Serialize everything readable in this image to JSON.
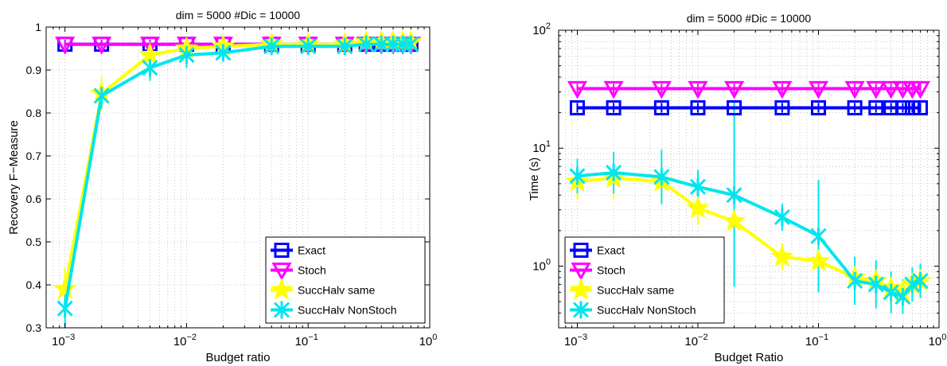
{
  "chart_data": [
    {
      "type": "line",
      "title": "dim = 5000  #Dic = 10000",
      "xlabel": "Budget ratio",
      "ylabel": "Recovery F−Measure",
      "xscale": "log",
      "yscale": "linear",
      "xlim": [
        0.0007,
        1
      ],
      "ylim": [
        0.3,
        1
      ],
      "xticks": [
        {
          "value": 0.001,
          "mant": "10",
          "exp": "−3"
        },
        {
          "value": 0.01,
          "mant": "10",
          "exp": "−2"
        },
        {
          "value": 0.1,
          "mant": "10",
          "exp": "−1"
        },
        {
          "value": 1,
          "mant": "10",
          "exp": "0"
        }
      ],
      "yticks": [
        {
          "value": 0.3,
          "label": "0.3"
        },
        {
          "value": 0.4,
          "label": "0.4"
        },
        {
          "value": 0.5,
          "label": "0.5"
        },
        {
          "value": 0.6,
          "label": "0.6"
        },
        {
          "value": 0.7,
          "label": "0.7"
        },
        {
          "value": 0.8,
          "label": "0.8"
        },
        {
          "value": 0.9,
          "label": "0.9"
        },
        {
          "value": 1,
          "label": "1"
        }
      ],
      "grid": true,
      "legend_position": "bottom-right",
      "x": [
        0.001,
        0.002,
        0.005,
        0.01,
        0.02,
        0.05,
        0.1,
        0.2,
        0.3,
        0.4,
        0.5,
        0.6,
        0.7
      ],
      "series": [
        {
          "name": "Exact",
          "color": "#0000ff",
          "marker": "square",
          "values": [
            0.96,
            0.96,
            0.96,
            0.96,
            0.96,
            0.96,
            0.96,
            0.96,
            0.96,
            0.96,
            0.96,
            0.96,
            0.96
          ],
          "err": [
            0.01,
            0.01,
            0.01,
            0.01,
            0.01,
            0.01,
            0.01,
            0.01,
            0.01,
            0.01,
            0.01,
            0.01,
            0.01
          ]
        },
        {
          "name": "Stoch",
          "color": "#ff00ff",
          "marker": "triangle-down",
          "values": [
            0.96,
            0.96,
            0.96,
            0.96,
            0.96,
            0.96,
            0.96,
            0.96,
            0.96,
            0.96,
            0.96,
            0.96,
            0.96
          ],
          "err": [
            0.01,
            0.01,
            0.01,
            0.01,
            0.01,
            0.01,
            0.01,
            0.01,
            0.01,
            0.01,
            0.01,
            0.01,
            0.01
          ]
        },
        {
          "name": "SuccHalv same",
          "color": "#ffff00",
          "marker": "star",
          "values": [
            0.39,
            0.845,
            0.935,
            0.95,
            0.955,
            0.96,
            0.96,
            0.96,
            0.965,
            0.965,
            0.965,
            0.965,
            0.965
          ],
          "err": [
            0.05,
            0.04,
            0.03,
            0.02,
            0.01,
            0.01,
            0.01,
            0.01,
            0.01,
            0.01,
            0.01,
            0.01,
            0.01
          ]
        },
        {
          "name": "SuccHalv NonStoch",
          "color": "#00e5ee",
          "marker": "x-star",
          "values": [
            0.345,
            0.84,
            0.905,
            0.935,
            0.94,
            0.955,
            0.955,
            0.955,
            0.96,
            0.96,
            0.96,
            0.96,
            0.96
          ],
          "err": [
            0.05,
            0.03,
            0.03,
            0.03,
            0.02,
            0.01,
            0.01,
            0.01,
            0.01,
            0.01,
            0.01,
            0.01,
            0.01
          ]
        }
      ]
    },
    {
      "type": "line",
      "title": "dim = 5000  #Dic = 10000",
      "xlabel": "Budget Ratio",
      "ylabel": "Time (s)",
      "xscale": "log",
      "yscale": "log",
      "xlim": [
        0.0007,
        1
      ],
      "ylim": [
        0.3,
        100
      ],
      "xticks": [
        {
          "value": 0.001,
          "mant": "10",
          "exp": "−3"
        },
        {
          "value": 0.01,
          "mant": "10",
          "exp": "−2"
        },
        {
          "value": 0.1,
          "mant": "10",
          "exp": "−1"
        },
        {
          "value": 1,
          "mant": "10",
          "exp": "0"
        }
      ],
      "yticks": [
        {
          "value": 1,
          "mant": "10",
          "exp": "0"
        },
        {
          "value": 10,
          "mant": "10",
          "exp": "1"
        },
        {
          "value": 100,
          "mant": "10",
          "exp": "2"
        }
      ],
      "grid": true,
      "legend_position": "bottom-left",
      "x": [
        0.001,
        0.002,
        0.005,
        0.01,
        0.02,
        0.05,
        0.1,
        0.2,
        0.3,
        0.4,
        0.5,
        0.6,
        0.7
      ],
      "series": [
        {
          "name": "Exact",
          "color": "#0000ff",
          "marker": "square",
          "values": [
            22,
            22,
            22,
            22,
            22,
            22,
            22,
            22,
            22,
            22,
            22,
            22,
            22
          ],
          "err": [
            1.1,
            1.1,
            1.1,
            1.1,
            1.1,
            1.1,
            1.1,
            1.1,
            1.1,
            1.1,
            1.1,
            1.1,
            1.1
          ]
        },
        {
          "name": "Stoch",
          "color": "#ff00ff",
          "marker": "triangle-down",
          "values": [
            32,
            32,
            32,
            32,
            32,
            32,
            32,
            32,
            32,
            32,
            32,
            32,
            32
          ],
          "err": [
            1.1,
            1.1,
            1.1,
            1.1,
            1.1,
            1.1,
            1.1,
            1.1,
            1.1,
            1.1,
            1.1,
            1.1,
            1.1
          ]
        },
        {
          "name": "SuccHalv same",
          "color": "#ffff00",
          "marker": "star",
          "values": [
            5.2,
            5.6,
            5.2,
            3.1,
            2.4,
            1.2,
            1.1,
            0.8,
            0.75,
            0.65,
            0.6,
            0.7,
            0.75
          ],
          "err": [
            1.4,
            1.5,
            1.4,
            1.4,
            1.4,
            1.3,
            1.4,
            1.3,
            1.3,
            1.3,
            1.3,
            1.3,
            1.3
          ]
        },
        {
          "name": "SuccHalv NonStoch",
          "color": "#00e5ee",
          "marker": "x-star",
          "values": [
            5.8,
            6.2,
            5.7,
            4.7,
            4.0,
            2.6,
            1.8,
            0.75,
            0.7,
            0.6,
            0.55,
            0.7,
            0.75
          ],
          "err": [
            1.4,
            1.5,
            1.7,
            1.4,
            6,
            1.3,
            3,
            1.6,
            1.6,
            1.5,
            1.4,
            1.4,
            1.4
          ]
        }
      ]
    }
  ]
}
